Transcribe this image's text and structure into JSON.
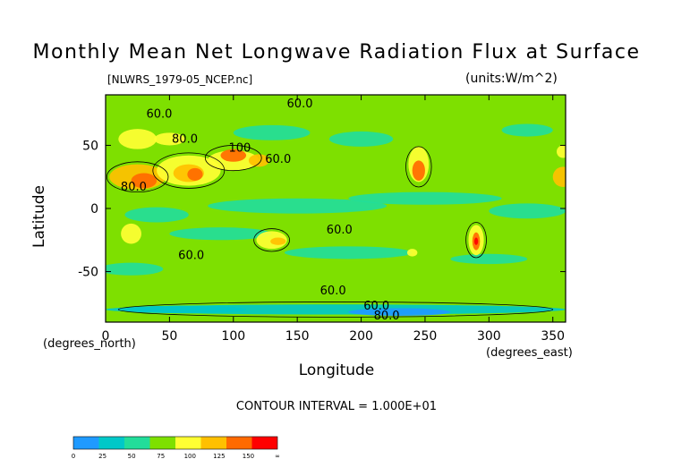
{
  "chart_data": {
    "type": "heatmap",
    "title": "Monthly Mean Net Longwave Radiation Flux at Surface",
    "source_file": "[NLWRS_1979-05_NCEP.nc]",
    "units": "(units:W/m^2)",
    "xlabel": "Longitude",
    "ylabel": "Latitude",
    "x_unit_label": "(degrees_north)",
    "x_unit_label_right": "(degrees_east)",
    "xlim": [
      0,
      360
    ],
    "ylim": [
      -90,
      90
    ],
    "x_ticks": [
      "0",
      "50",
      "100",
      "150",
      "200",
      "250",
      "300",
      "350"
    ],
    "y_ticks": [
      "50",
      "0",
      "-50"
    ],
    "contour_interval_text": "CONTOUR INTERVAL = 1.000E+01",
    "contour_labels": [
      {
        "text": "60.0",
        "lon": 42,
        "lat": 72
      },
      {
        "text": "60.0",
        "lon": 152,
        "lat": 80
      },
      {
        "text": "80.0",
        "lon": 62,
        "lat": 52
      },
      {
        "text": "100",
        "lon": 105,
        "lat": 45
      },
      {
        "text": "60.0",
        "lon": 135,
        "lat": 36
      },
      {
        "text": "80.0",
        "lon": 22,
        "lat": 14
      },
      {
        "text": "60.0",
        "lon": 183,
        "lat": -20
      },
      {
        "text": "60.0",
        "lon": 67,
        "lat": -40
      },
      {
        "text": "60.0",
        "lon": 178,
        "lat": -68
      },
      {
        "text": "60.0",
        "lon": 212,
        "lat": -80
      },
      {
        "text": "80.0",
        "lon": 220,
        "lat": -88
      }
    ],
    "colorbar": {
      "tick_labels": [
        "0",
        "25",
        "50",
        "75",
        "100",
        "125",
        "150",
        "∞"
      ],
      "colors": [
        "#1f9aff",
        "#00c8c8",
        "#22dd9a",
        "#7ee000",
        "#ffff33",
        "#ffc000",
        "#ff6a00",
        "#ff0000"
      ]
    },
    "levels": [
      0,
      25,
      50,
      75,
      100,
      125,
      150
    ]
  }
}
